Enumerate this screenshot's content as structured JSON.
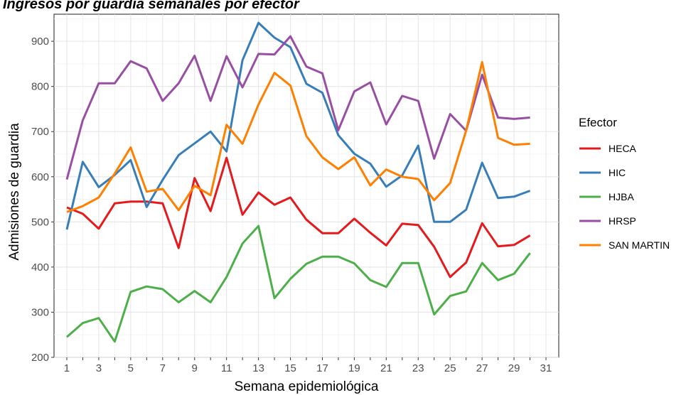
{
  "chart_data": {
    "type": "line",
    "title": "Ingresos por guardia semanales por efector",
    "xlabel": "Semana epidemiológica",
    "ylabel": "Admisiones de guardia",
    "x": [
      1,
      2,
      3,
      4,
      5,
      6,
      7,
      8,
      9,
      10,
      11,
      12,
      13,
      14,
      15,
      16,
      17,
      18,
      19,
      20,
      21,
      22,
      23,
      24,
      25,
      26,
      27,
      28,
      29,
      30
    ],
    "xlim": [
      0.2,
      31.8
    ],
    "ylim": [
      200,
      960
    ],
    "x_ticks": [
      1,
      3,
      5,
      7,
      9,
      11,
      13,
      15,
      17,
      19,
      21,
      23,
      25,
      27,
      29,
      31
    ],
    "y_ticks": [
      200,
      300,
      400,
      500,
      600,
      700,
      800,
      900
    ],
    "grid": true,
    "legend": {
      "title": "Efector",
      "placement": "right"
    },
    "series": [
      {
        "name": "HECA",
        "color": "#e41a1c",
        "values": [
          532,
          518,
          485,
          541,
          545,
          545,
          541,
          442,
          597,
          524,
          642,
          516,
          565,
          538,
          554,
          505,
          475,
          475,
          507,
          476,
          448,
          496,
          493,
          445,
          378,
          410,
          497,
          446,
          449,
          470
        ]
      },
      {
        "name": "HIC",
        "color": "#377eb8",
        "values": [
          483,
          633,
          577,
          604,
          637,
          533,
          593,
          648,
          674,
          700,
          656,
          858,
          941,
          908,
          887,
          806,
          786,
          692,
          651,
          629,
          578,
          603,
          669,
          500,
          500,
          527,
          631,
          553,
          556,
          569
        ]
      },
      {
        "name": "HJBA",
        "color": "#4daf4a",
        "values": [
          245,
          276,
          287,
          235,
          345,
          357,
          351,
          322,
          347,
          322,
          378,
          452,
          491,
          331,
          374,
          407,
          423,
          423,
          408,
          371,
          356,
          409,
          409,
          295,
          336,
          346,
          409,
          371,
          385,
          431
        ]
      },
      {
        "name": "HRSP",
        "color": "#984ea3",
        "values": [
          594,
          725,
          807,
          807,
          856,
          840,
          768,
          807,
          868,
          768,
          867,
          798,
          872,
          871,
          911,
          844,
          829,
          703,
          789,
          809,
          716,
          779,
          768,
          640,
          739,
          702,
          826,
          731,
          728,
          731
        ]
      },
      {
        "name": "SAN MARTIN",
        "color": "#ff7f00",
        "values": [
          522,
          535,
          554,
          607,
          665,
          567,
          573,
          526,
          580,
          559,
          715,
          673,
          760,
          830,
          802,
          690,
          643,
          617,
          643,
          581,
          616,
          600,
          595,
          548,
          586,
          702,
          854,
          686,
          671,
          673
        ]
      }
    ]
  }
}
